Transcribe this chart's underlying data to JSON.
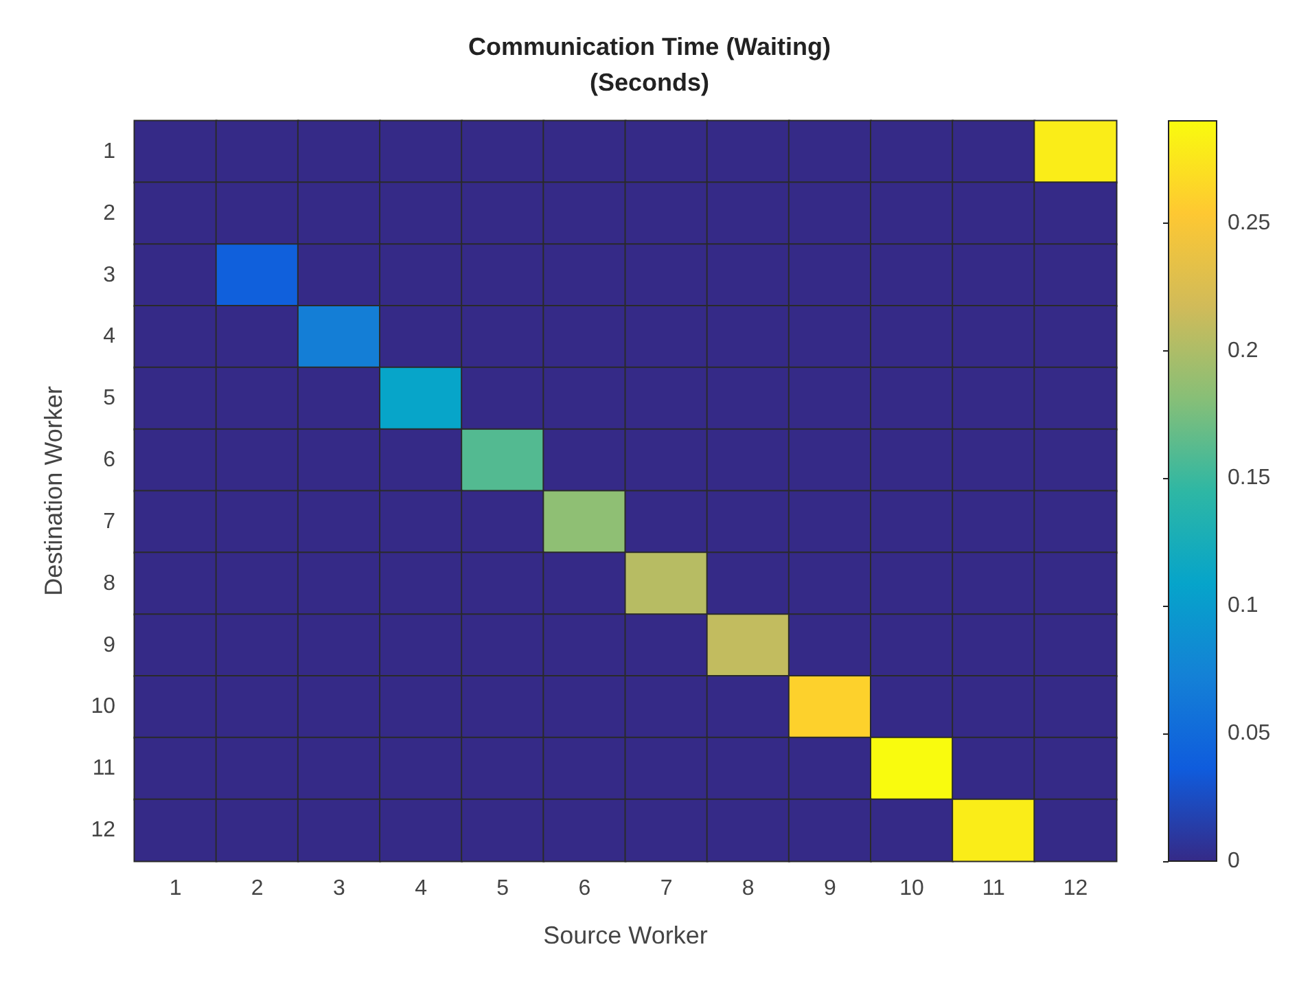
{
  "chart_data": {
    "type": "heatmap",
    "title": "Communication Time (Waiting)\n(Seconds)",
    "xlabel": "Source Worker",
    "ylabel": "Destination Worker",
    "categories": [
      "1",
      "2",
      "3",
      "4",
      "5",
      "6",
      "7",
      "8",
      "9",
      "10",
      "11",
      "12"
    ],
    "y_categories": [
      "1",
      "2",
      "3",
      "4",
      "5",
      "6",
      "7",
      "8",
      "9",
      "10",
      "11",
      "12"
    ],
    "cells": [
      [
        0,
        0,
        0,
        0,
        0,
        0,
        0,
        0,
        0,
        0,
        0,
        0.28
      ],
      [
        0,
        0,
        0,
        0,
        0,
        0,
        0,
        0,
        0,
        0,
        0,
        0
      ],
      [
        0,
        0.04,
        0,
        0,
        0,
        0,
        0,
        0,
        0,
        0,
        0,
        0
      ],
      [
        0,
        0,
        0.07,
        0,
        0,
        0,
        0,
        0,
        0,
        0,
        0,
        0
      ],
      [
        0,
        0,
        0,
        0.11,
        0,
        0,
        0,
        0,
        0,
        0,
        0,
        0
      ],
      [
        0,
        0,
        0,
        0,
        0.16,
        0,
        0,
        0,
        0,
        0,
        0,
        0
      ],
      [
        0,
        0,
        0,
        0,
        0,
        0.185,
        0,
        0,
        0,
        0,
        0,
        0
      ],
      [
        0,
        0,
        0,
        0,
        0,
        0,
        0.205,
        0,
        0,
        0,
        0,
        0
      ],
      [
        0,
        0,
        0,
        0,
        0,
        0,
        0,
        0.21,
        0,
        0,
        0,
        0
      ],
      [
        0,
        0,
        0,
        0,
        0,
        0,
        0,
        0,
        0.26,
        0,
        0,
        0
      ],
      [
        0,
        0,
        0,
        0,
        0,
        0,
        0,
        0,
        0,
        0.29,
        0,
        0
      ],
      [
        0,
        0,
        0,
        0,
        0,
        0,
        0,
        0,
        0,
        0,
        0.28,
        0
      ]
    ],
    "clim": [
      0,
      0.29
    ],
    "cticks": [
      0,
      0.05,
      0.1,
      0.15,
      0.2,
      0.25
    ]
  }
}
